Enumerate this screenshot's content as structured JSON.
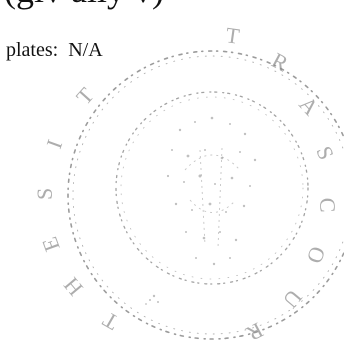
{
  "document": {
    "top_fragment": "(giv ally v)",
    "plates_label": "plates:",
    "plates_value": "N/A"
  },
  "stamp": {
    "description_icon": "library-seal-stamp",
    "ring_letters": [
      "T",
      "R",
      "A",
      "S",
      "C",
      "O",
      "U",
      "R",
      "T",
      "H",
      "E",
      "S",
      "I",
      "T"
    ],
    "ink_color": "#6f6f6f"
  }
}
